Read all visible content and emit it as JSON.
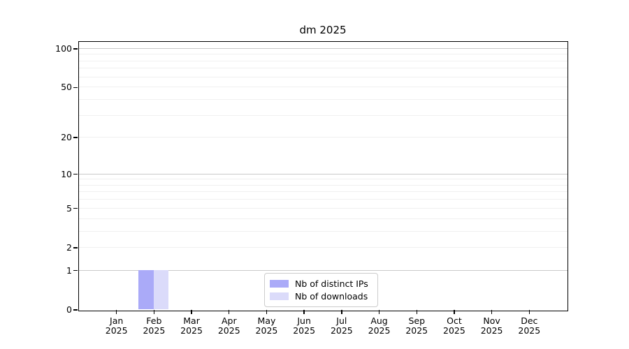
{
  "chart_data": {
    "type": "bar",
    "title": "dm 2025",
    "categories": [
      {
        "month": "Jan",
        "year": "2025"
      },
      {
        "month": "Feb",
        "year": "2025"
      },
      {
        "month": "Mar",
        "year": "2025"
      },
      {
        "month": "Apr",
        "year": "2025"
      },
      {
        "month": "May",
        "year": "2025"
      },
      {
        "month": "Jun",
        "year": "2025"
      },
      {
        "month": "Jul",
        "year": "2025"
      },
      {
        "month": "Aug",
        "year": "2025"
      },
      {
        "month": "Sep",
        "year": "2025"
      },
      {
        "month": "Oct",
        "year": "2025"
      },
      {
        "month": "Nov",
        "year": "2025"
      },
      {
        "month": "Dec",
        "year": "2025"
      }
    ],
    "series": [
      {
        "name": "Nb of distinct IPs",
        "color": "#aaaaf8",
        "values": [
          0,
          1,
          0,
          0,
          0,
          0,
          0,
          0,
          0,
          0,
          0,
          0
        ]
      },
      {
        "name": "Nb of downloads",
        "color": "#dbdbfa",
        "values": [
          0,
          1,
          0,
          0,
          0,
          0,
          0,
          0,
          0,
          0,
          0,
          0
        ]
      }
    ],
    "y_axis": {
      "scale": "log1p",
      "tick_values": [
        0,
        1,
        2,
        5,
        10,
        20,
        50,
        100
      ],
      "tick_labels": [
        "0",
        "1",
        "2",
        "5",
        "10",
        "20",
        "50",
        "100"
      ],
      "major_gridline_values": [
        1,
        10,
        100
      ],
      "minor_gridline_values": [
        2,
        3,
        4,
        5,
        6,
        7,
        8,
        9,
        20,
        30,
        40,
        50,
        60,
        70,
        80,
        90
      ],
      "range": [
        0,
        113
      ]
    },
    "grid": "on",
    "legend": {
      "position": "lower center"
    },
    "colors": {
      "bar_distinct_ips": "#aaaaf8",
      "bar_downloads": "#dbdbfa",
      "grid_major": "#c9c9c9",
      "grid_minor": "#f0f0f0",
      "spine": "#000000",
      "legend_border": "#cccccc",
      "background": "#ffffff"
    }
  }
}
